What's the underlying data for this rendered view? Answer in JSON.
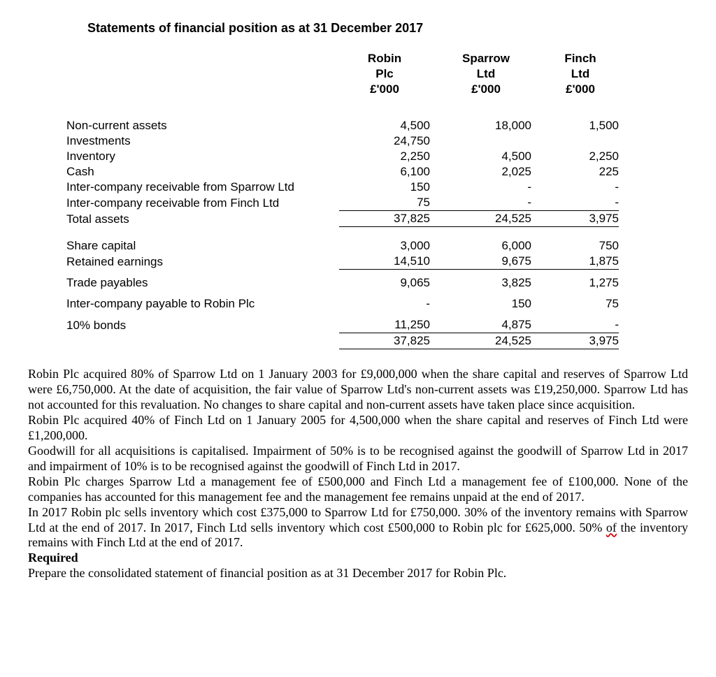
{
  "title": "Statements of financial position as at 31 December 2017",
  "headers": {
    "c1a": "Robin",
    "c1b": "Plc",
    "c1c": "£'000",
    "c2a": "Sparrow",
    "c2b": "Ltd",
    "c2c": "£'000",
    "c3a": "Finch",
    "c3b": "Ltd",
    "c3c": "£'000"
  },
  "rows": {
    "nca": {
      "label": "Non-current assets",
      "c1": "4,500",
      "c2": "18,000",
      "c3": "1,500"
    },
    "inv": {
      "label": "Investments",
      "c1": "24,750",
      "c2": "",
      "c3": ""
    },
    "inventory": {
      "label": "Inventory",
      "c1": "2,250",
      "c2": "4,500",
      "c3": "2,250"
    },
    "cash": {
      "label": "Cash",
      "c1": "6,100",
      "c2": "2,025",
      "c3": "225"
    },
    "icrs": {
      "label": "Inter-company receivable from Sparrow Ltd",
      "c1": "150",
      "c2": "-",
      "c3": "-"
    },
    "icrf": {
      "label": "Inter-company receivable from  Finch Ltd",
      "c1": "75",
      "c2": "-",
      "c3": "-"
    },
    "ta": {
      "label": "Total assets",
      "c1": "37,825",
      "c2": "24,525",
      "c3": "3,975"
    },
    "sc": {
      "label": "Share capital",
      "c1": "3,000",
      "c2": "6,000",
      "c3": "750"
    },
    "re": {
      "label": "Retained earnings",
      "c1": "14,510",
      "c2": "9,675",
      "c3": "1,875"
    },
    "tp": {
      "label": "Trade payables",
      "c1": "9,065",
      "c2": "3,825",
      "c3": "1,275"
    },
    "icp": {
      "label": "Inter-company payable to Robin Plc",
      "c1": "-",
      "c2": "150",
      "c3": "75"
    },
    "bonds": {
      "label": "10% bonds",
      "c1": "11,250",
      "c2": "4,875",
      "c3": "-"
    },
    "tot": {
      "label": "",
      "c1": "37,825",
      "c2": "24,525",
      "c3": "3,975"
    }
  },
  "para": {
    "p1": "Robin Plc acquired 80% of Sparrow Ltd on 1 January 2003 for £9,000,000 when the share capital and reserves of Sparrow Ltd were £6,750,000. At the date of acquisition, the fair value of Sparrow Ltd's non-current assets was £19,250,000. Sparrow Ltd has not accounted for this revaluation. No changes to share capital and non-current assets have taken place since acquisition.",
    "p2": "Robin Plc acquired 40% of Finch Ltd on 1 January 2005 for 4,500,000 when the share capital and reserves of Finch Ltd were £1,200,000.",
    "p3": "Goodwill for all acquisitions is capitalised. Impairment of 50% is to be recognised against the goodwill of Sparrow Ltd in 2017 and impairment of 10% is to be recognised against the goodwill of Finch Ltd in 2017.",
    "p4": "Robin Plc charges Sparrow Ltd a management fee of £500,000 and Finch Ltd a management fee of £100,000. None of the companies has accounted for this management fee and the management fee remains unpaid at the end of 2017.",
    "p5a": "In 2017 Robin plc sells inventory which cost £375,000 to Sparrow Ltd for £750,000. 30% of the inventory remains with Sparrow Ltd at the end of 2017. In 2017, Finch Ltd sells inventory which cost £500,000 to Robin plc for £625,000. 50% ",
    "p5b": "of",
    "p5c": " the inventory remains with Finch Ltd at the end of 2017.",
    "req": "Required",
    "p6": "Prepare the consolidated statement of financial position as at 31 December 2017 for Robin Plc."
  },
  "colors": {
    "background": "#ffffff",
    "text": "#000000",
    "squiggle": "#d00000"
  }
}
